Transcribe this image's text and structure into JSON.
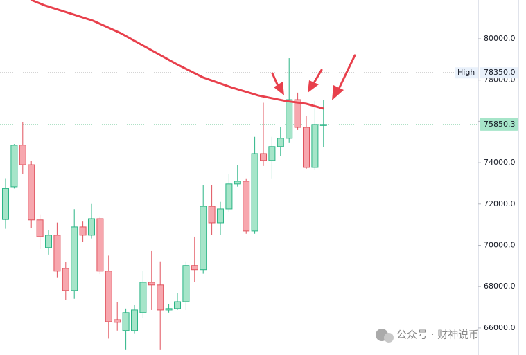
{
  "chart_data": {
    "type": "candlestick",
    "open": [
      71250,
      72833,
      74850,
      73900,
      71230,
      69890,
      70490,
      68880,
      67810,
      70890,
      70490,
      71290,
      68750,
      66400,
      65870,
      65870,
      66740,
      68210,
      68080,
      66870,
      66940,
      67270,
      69020,
      68820,
      71890,
      71090,
      71760,
      72970,
      73100,
      70690,
      74440,
      74110,
      74780,
      75180,
      77050,
      75710,
      73770,
      75800
    ],
    "high": [
      73250,
      74900,
      75980,
      74100,
      71500,
      70750,
      71100,
      69200,
      71750,
      71150,
      72000,
      71400,
      69500,
      67270,
      66940,
      67100,
      68750,
      69750,
      69220,
      67140,
      67670,
      69220,
      70420,
      72900,
      72900,
      72100,
      73440,
      73900,
      73240,
      75250,
      76900,
      75250,
      75720,
      79060,
      77390,
      76250,
      76990,
      77040
    ],
    "low": [
      70800,
      72750,
      73440,
      70820,
      69820,
      69550,
      68420,
      67340,
      67410,
      70150,
      70330,
      68610,
      65480,
      65870,
      64930,
      65740,
      66470,
      66870,
      64930,
      66740,
      66870,
      66870,
      68220,
      68620,
      70490,
      70490,
      71630,
      72840,
      70560,
      70560,
      73840,
      73240,
      74320,
      74980,
      75580,
      73700,
      73640,
      74770
    ],
    "close": [
      72750,
      74843,
      73900,
      71230,
      70420,
      70490,
      68750,
      67810,
      70890,
      70490,
      71290,
      68750,
      66300,
      66270,
      66740,
      66870,
      68210,
      68080,
      66870,
      66940,
      67270,
      69020,
      68820,
      71890,
      71090,
      71760,
      72970,
      73100,
      70690,
      74440,
      74110,
      74780,
      75180,
      77050,
      75710,
      73770,
      75850,
      75850.3
    ],
    "ma": {
      "color": "#e8404c",
      "index": [
        3,
        4.6,
        10.2,
        13.4,
        16.6,
        19.8,
        23,
        26.2,
        29.4,
        32.6,
        35,
        37
      ],
      "values": [
        81875,
        81608,
        80871,
        80268,
        79531,
        78794,
        78125,
        77656,
        77254,
        76986,
        76852,
        76618
      ]
    },
    "up_color": "#a6e5c9",
    "up_border": "#2bb586",
    "down_color": "#f7a7ae",
    "down_border": "#e0535e",
    "ylim": [
      64690,
      81875
    ],
    "yticks": [
      {
        "value": 66000,
        "label": "66000.0"
      },
      {
        "value": 68000,
        "label": "68000.0"
      },
      {
        "value": 70000,
        "label": "70000.0"
      },
      {
        "value": 72000,
        "label": "72000.0"
      },
      {
        "value": 74000,
        "label": "74000.0"
      },
      {
        "value": 76000,
        "label": "76000.0"
      },
      {
        "value": 78000,
        "label": "78000.0"
      },
      {
        "value": 80000,
        "label": "80000.0"
      }
    ],
    "high_line": {
      "label": "High",
      "value": 78350,
      "value_label": "78350.0"
    },
    "last_price": {
      "value": 75850.3,
      "value_label": "75850.3"
    },
    "watermark": "公众号 · 财神说币"
  }
}
